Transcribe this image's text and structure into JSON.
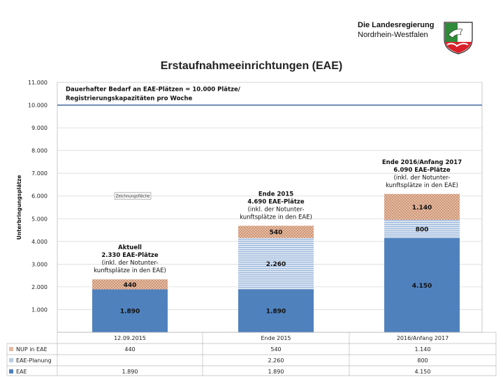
{
  "header": {
    "gov_title": "Die Landesregierung",
    "gov_subtitle": "Nordrhein-Westfalen",
    "logo": "nrw-crest-icon"
  },
  "chart_data": {
    "type": "bar",
    "stacked": true,
    "title": "Erstaufnahmeeinrichtungen (EAE)",
    "ylabel": "Unterbringungsplätze",
    "xlabel": "",
    "ylim": [
      0,
      11000
    ],
    "yticks": [
      "1.000",
      "2.000",
      "3.000",
      "4.000",
      "5.000",
      "6.000",
      "7.000",
      "8.000",
      "9.000",
      "10.000",
      "11.000"
    ],
    "categories": [
      "12.09.2015",
      "Ende 2015",
      "2016/Anfang 2017"
    ],
    "series": [
      {
        "name": "EAE",
        "values": [
          1890,
          1890,
          4150
        ],
        "labels": [
          "1.890",
          "1.890",
          "4.150"
        ],
        "color": "#4f81bd"
      },
      {
        "name": "EAE-Planung",
        "values": [
          null,
          2260,
          800
        ],
        "labels": [
          "",
          "2.260",
          "800"
        ],
        "color": "#b8cce4"
      },
      {
        "name": "NUP in EAE",
        "values": [
          440,
          540,
          1140
        ],
        "labels": [
          "440",
          "540",
          "1.140"
        ],
        "color": "#e6b9a0"
      }
    ],
    "reference_line": {
      "value": 10000,
      "label": [
        "Dauerhafter Bedarf an EAE-Plätzen = 10.000 Plätze/",
        "Registrierungskapazitäten pro Woche"
      ]
    },
    "annotations": [
      [
        "Aktuell",
        "2.330 EAE-Plätze",
        "(inkl. der Notunter-",
        "kunftsplätze in den EAE)"
      ],
      [
        "Ende 2015",
        "4.690 EAE-Plätze",
        "(inkl. der Notunter-",
        "kunftsplätze in den EAE)"
      ],
      [
        "Ende 2016/Anfang 2017",
        "6.090 EAE-Plätze",
        "(inkl. der Notunter-",
        "kunftsplätze in den EAE)"
      ]
    ],
    "placeholder_label": "Zeichnungsfläche",
    "grid": true,
    "data_table": true
  }
}
